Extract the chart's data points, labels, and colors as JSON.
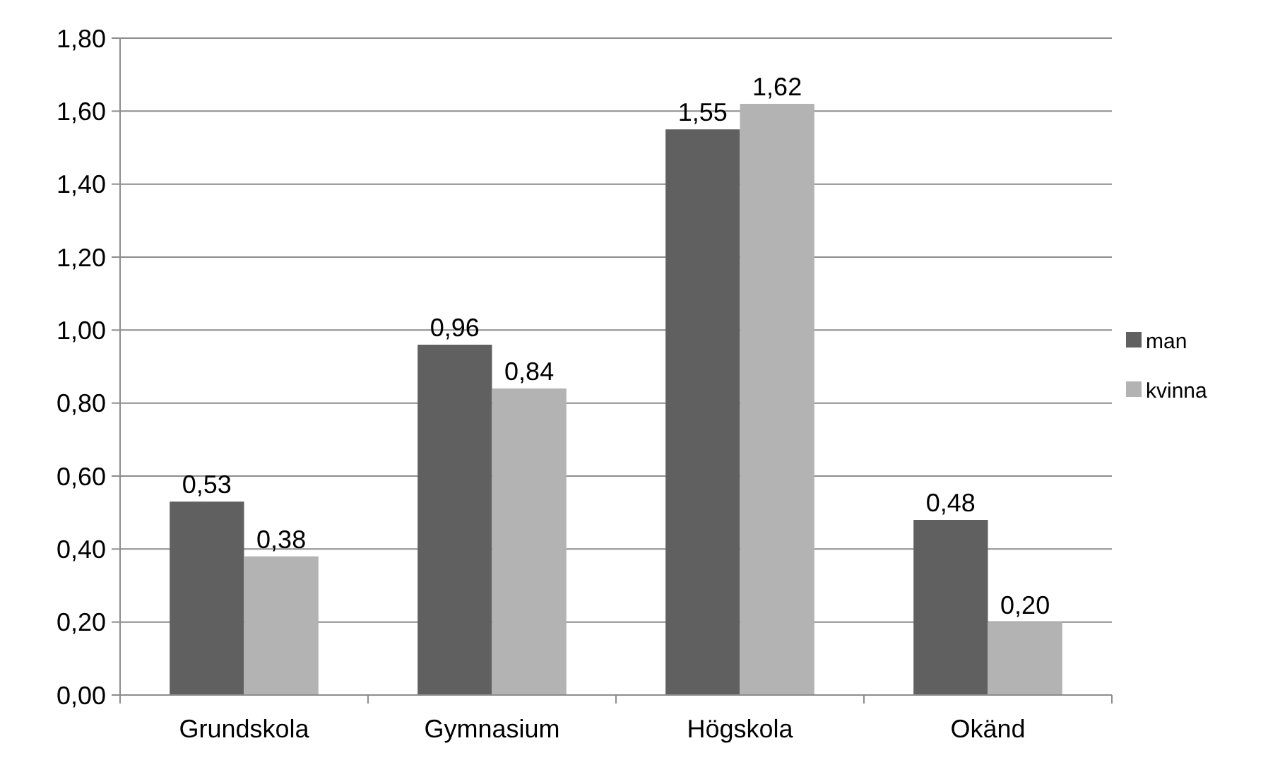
{
  "chart_data": {
    "type": "bar",
    "categories": [
      "Grundskola",
      "Gymnasium",
      "Högskola",
      "Okänd"
    ],
    "series": [
      {
        "name": "man",
        "color": "#606060",
        "values": [
          0.53,
          0.96,
          1.55,
          0.48
        ],
        "value_labels": [
          "0,53",
          "0,96",
          "1,55",
          "0,48"
        ]
      },
      {
        "name": "kvinna",
        "color": "#b3b3b3",
        "values": [
          0.38,
          0.84,
          1.62,
          0.2
        ],
        "value_labels": [
          "0,38",
          "0,84",
          "1,62",
          "0,20"
        ]
      }
    ],
    "ylim": [
      0,
      1.8
    ],
    "yticks": [
      {
        "value": 0,
        "label": "0,00"
      },
      {
        "value": 0.2,
        "label": "0,20"
      },
      {
        "value": 0.4,
        "label": "0,40"
      },
      {
        "value": 0.6,
        "label": "0,60"
      },
      {
        "value": 0.8,
        "label": "0,80"
      },
      {
        "value": 1,
        "label": "1,00"
      },
      {
        "value": 1.2,
        "label": "1,20"
      },
      {
        "value": 1.4,
        "label": "1,40"
      },
      {
        "value": 1.6,
        "label": "1,60"
      },
      {
        "value": 1.8,
        "label": "1,80"
      }
    ],
    "grid": "y",
    "legend": "right"
  }
}
